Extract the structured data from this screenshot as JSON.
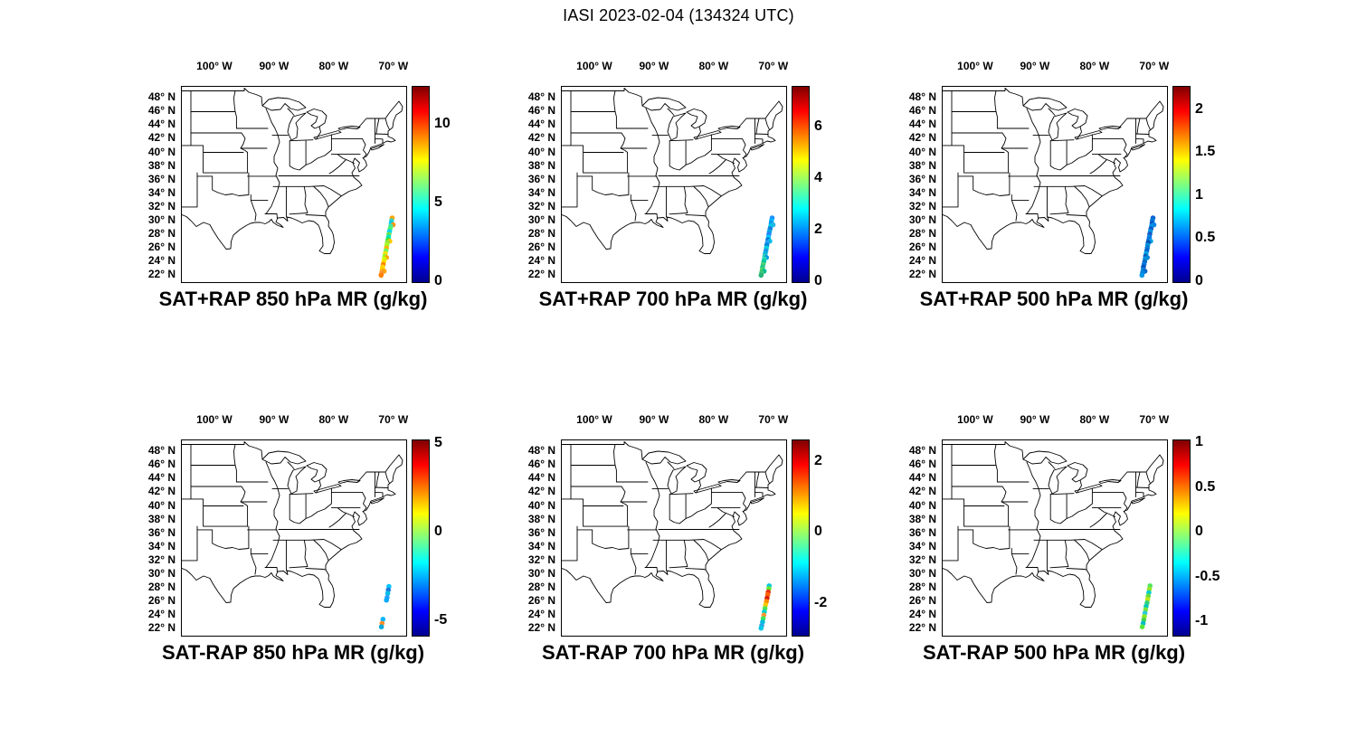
{
  "figure": {
    "title": "IASI 2023-02-04 (134324 UTC)"
  },
  "axes": {
    "lon_tick_values": [
      -100,
      -90,
      -80,
      -70
    ],
    "lon_tick_labels": [
      "100° W",
      "90° W",
      "80° W",
      "70° W"
    ],
    "lat_tick_values": [
      48,
      46,
      44,
      42,
      40,
      38,
      36,
      34,
      32,
      30,
      28,
      26,
      24,
      22
    ],
    "lat_tick_labels": [
      "48° N",
      "46° N",
      "44° N",
      "42° N",
      "40° N",
      "38° N",
      "36° N",
      "34° N",
      "32° N",
      "30° N",
      "28° N",
      "26° N",
      "24° N",
      "22° N"
    ],
    "lon_range": [
      -105.6,
      -68
    ],
    "lat_range": [
      21,
      49.6
    ]
  },
  "chart_data": {
    "type": "scatter",
    "subtype": "geographic-multipanel",
    "figure_title": "IASI 2023-02-04 (134324 UTC)",
    "basemap": "US state outlines, eastern and central United States",
    "colormap": "jet",
    "lon_range": [
      -105.6,
      -68
    ],
    "lat_range": [
      21,
      49.6
    ],
    "panels": [
      {
        "title": "SAT+RAP 850 hPa MR (g/kg)",
        "colorbar": {
          "min": 0,
          "max": 12.4,
          "ticks": [
            10,
            5,
            0
          ]
        },
        "points": [
          [
            30.4,
            -70.35,
            "#ffa500"
          ],
          [
            30.0,
            -70.45,
            "#32d2c8"
          ],
          [
            29.6,
            -70.5,
            "#00c8ff"
          ],
          [
            29.4,
            -70.2,
            "#ff9600"
          ],
          [
            29.2,
            -70.6,
            "#46e6a0"
          ],
          [
            28.8,
            -70.7,
            "#50fa64"
          ],
          [
            28.4,
            -70.8,
            "#00d2ff"
          ],
          [
            28.0,
            -70.9,
            "#64e650"
          ],
          [
            27.6,
            -70.95,
            "#00e6c8"
          ],
          [
            27.2,
            -71.05,
            "#32e632"
          ],
          [
            27.0,
            -70.75,
            "#ffc800"
          ],
          [
            26.8,
            -71.15,
            "#96e632"
          ],
          [
            26.4,
            -71.25,
            "#a0ff28"
          ],
          [
            26.0,
            -71.3,
            "#ffb400"
          ],
          [
            25.6,
            -71.4,
            "#64ff64"
          ],
          [
            25.2,
            -71.5,
            "#ffdc00"
          ],
          [
            24.8,
            -71.6,
            "#96ff32"
          ],
          [
            24.6,
            -71.3,
            "#ffa000"
          ],
          [
            24.4,
            -71.65,
            "#c8ff00"
          ],
          [
            24.0,
            -71.75,
            "#ffe000"
          ],
          [
            23.6,
            -71.85,
            "#ff8c00"
          ],
          [
            23.2,
            -71.95,
            "#ffd700"
          ],
          [
            22.8,
            -72.0,
            "#ffc800"
          ],
          [
            22.6,
            -71.7,
            "#ffa500"
          ],
          [
            22.4,
            -72.1,
            "#ff9632"
          ],
          [
            22.0,
            -72.2,
            "#ff7f00"
          ]
        ]
      },
      {
        "title": "SAT+RAP 700 hPa MR (g/kg)",
        "colorbar": {
          "min": 0,
          "max": 7.6,
          "ticks": [
            6,
            4,
            2,
            0
          ]
        },
        "points": [
          [
            30.4,
            -70.35,
            "#1e90ff"
          ],
          [
            30.0,
            -70.45,
            "#00b4ff"
          ],
          [
            29.6,
            -70.5,
            "#0096f0"
          ],
          [
            29.4,
            -70.2,
            "#28b4e6"
          ],
          [
            29.2,
            -70.6,
            "#00c8e6"
          ],
          [
            28.8,
            -70.7,
            "#1e78dc"
          ],
          [
            28.4,
            -70.8,
            "#00aae6"
          ],
          [
            28.0,
            -70.9,
            "#2882ff"
          ],
          [
            27.6,
            -70.95,
            "#00c8ff"
          ],
          [
            27.2,
            -71.05,
            "#0f6edc"
          ],
          [
            27.0,
            -70.75,
            "#00bee6"
          ],
          [
            26.8,
            -71.15,
            "#28a0f0"
          ],
          [
            26.4,
            -71.25,
            "#0082dc"
          ],
          [
            26.0,
            -71.3,
            "#00d2dc"
          ],
          [
            25.6,
            -71.4,
            "#1e96e6"
          ],
          [
            25.2,
            -71.5,
            "#00b4dc"
          ],
          [
            24.8,
            -71.6,
            "#32c8b4"
          ],
          [
            24.6,
            -71.3,
            "#0096e6"
          ],
          [
            24.4,
            -71.65,
            "#28dcb4"
          ],
          [
            24.0,
            -71.75,
            "#00c8a0"
          ],
          [
            23.6,
            -71.85,
            "#46d278"
          ],
          [
            23.2,
            -71.95,
            "#28c88c"
          ],
          [
            22.8,
            -72.0,
            "#50d264"
          ],
          [
            22.6,
            -71.7,
            "#00be96"
          ],
          [
            22.4,
            -72.1,
            "#3cc878"
          ],
          [
            22.0,
            -72.2,
            "#28b478"
          ]
        ]
      },
      {
        "title": "SAT+RAP 500 hPa MR (g/kg)",
        "colorbar": {
          "min": 0,
          "max": 2.27,
          "ticks": [
            2,
            1.5,
            1,
            0.5,
            0
          ]
        },
        "points": [
          [
            30.4,
            -70.35,
            "#0a64d2"
          ],
          [
            30.0,
            -70.45,
            "#0078dc"
          ],
          [
            29.6,
            -70.5,
            "#0050be"
          ],
          [
            29.4,
            -70.2,
            "#0a82e6"
          ],
          [
            29.2,
            -70.6,
            "#0091e6"
          ],
          [
            28.8,
            -70.7,
            "#0a5ac8"
          ],
          [
            28.4,
            -70.8,
            "#0096e6"
          ],
          [
            28.0,
            -70.9,
            "#145ac8"
          ],
          [
            27.6,
            -70.95,
            "#0082e6"
          ],
          [
            27.2,
            -71.05,
            "#0a6edc"
          ],
          [
            27.0,
            -70.75,
            "#00a0e6"
          ],
          [
            26.8,
            -71.15,
            "#0050b4"
          ],
          [
            26.4,
            -71.25,
            "#0091dc"
          ],
          [
            26.0,
            -71.3,
            "#0a78d2"
          ],
          [
            25.6,
            -71.4,
            "#0064d2"
          ],
          [
            25.2,
            -71.5,
            "#00aae6"
          ],
          [
            24.8,
            -71.6,
            "#0a5abe"
          ],
          [
            24.6,
            -71.3,
            "#0082d2"
          ],
          [
            24.4,
            -71.65,
            "#0096dc"
          ],
          [
            24.0,
            -71.75,
            "#0a6ec8"
          ],
          [
            23.6,
            -71.85,
            "#0078dc"
          ],
          [
            23.2,
            -71.95,
            "#0050be"
          ],
          [
            22.8,
            -72.0,
            "#008cdc"
          ],
          [
            22.6,
            -71.7,
            "#0a64c8"
          ],
          [
            22.4,
            -72.1,
            "#0082dc"
          ],
          [
            22.0,
            -72.2,
            "#0096e6"
          ]
        ]
      },
      {
        "title": "SAT-RAP 850 hPa MR (g/kg)",
        "colorbar": {
          "min": -5.8,
          "max": 5.2,
          "ticks": [
            5,
            0,
            -5
          ]
        },
        "points": [
          [
            28.2,
            -70.9,
            "#00c8ff"
          ],
          [
            27.7,
            -71.0,
            "#1e78dc"
          ],
          [
            27.2,
            -71.1,
            "#00bee6"
          ],
          [
            26.6,
            -71.2,
            "#28a0ff"
          ],
          [
            26.2,
            -71.3,
            "#00aaff"
          ],
          [
            23.4,
            -71.9,
            "#00b4ff"
          ],
          [
            22.8,
            -72.05,
            "#ff8c28"
          ],
          [
            22.3,
            -72.15,
            "#00aadc"
          ]
        ]
      },
      {
        "title": "SAT-RAP 700 hPa MR (g/kg)",
        "colorbar": {
          "min": -2.9,
          "max": 2.6,
          "ticks": [
            2,
            0,
            -2
          ]
        },
        "points": [
          [
            28.3,
            -70.85,
            "#00c8dc"
          ],
          [
            27.9,
            -70.9,
            "#64e632"
          ],
          [
            27.4,
            -71.0,
            "#e63214"
          ],
          [
            27.0,
            -71.1,
            "#ff6400"
          ],
          [
            26.5,
            -71.2,
            "#dc1e0a"
          ],
          [
            26.0,
            -71.3,
            "#ff8c00"
          ],
          [
            25.5,
            -71.45,
            "#ffc800"
          ],
          [
            25.0,
            -71.55,
            "#50e650"
          ],
          [
            24.5,
            -71.65,
            "#00d2c8"
          ],
          [
            24.0,
            -71.75,
            "#ff9632"
          ],
          [
            23.5,
            -71.85,
            "#3ce65a"
          ],
          [
            23.0,
            -71.95,
            "#00bedc"
          ],
          [
            22.5,
            -72.1,
            "#28aae6"
          ],
          [
            22.1,
            -72.2,
            "#00c8e6"
          ]
        ]
      },
      {
        "title": "SAT-RAP 500 hPa MR (g/kg)",
        "colorbar": {
          "min": -1.15,
          "max": 1.03,
          "ticks": [
            1,
            0.5,
            0,
            -0.5,
            -1
          ]
        },
        "points": [
          [
            28.3,
            -70.85,
            "#50e65a"
          ],
          [
            27.8,
            -70.95,
            "#96e628"
          ],
          [
            27.3,
            -71.05,
            "#00cdc8"
          ],
          [
            26.8,
            -71.15,
            "#64dc3c"
          ],
          [
            26.3,
            -71.25,
            "#bee614"
          ],
          [
            25.8,
            -71.35,
            "#32d278"
          ],
          [
            25.3,
            -71.5,
            "#00c8b4"
          ],
          [
            24.8,
            -71.6,
            "#78e632"
          ],
          [
            24.3,
            -71.7,
            "#28c8dc"
          ],
          [
            23.8,
            -71.8,
            "#8ce61e"
          ],
          [
            23.3,
            -71.9,
            "#46d250"
          ],
          [
            22.8,
            -72.0,
            "#00bec8"
          ],
          [
            22.3,
            -72.15,
            "#5ae63c"
          ]
        ]
      }
    ]
  }
}
